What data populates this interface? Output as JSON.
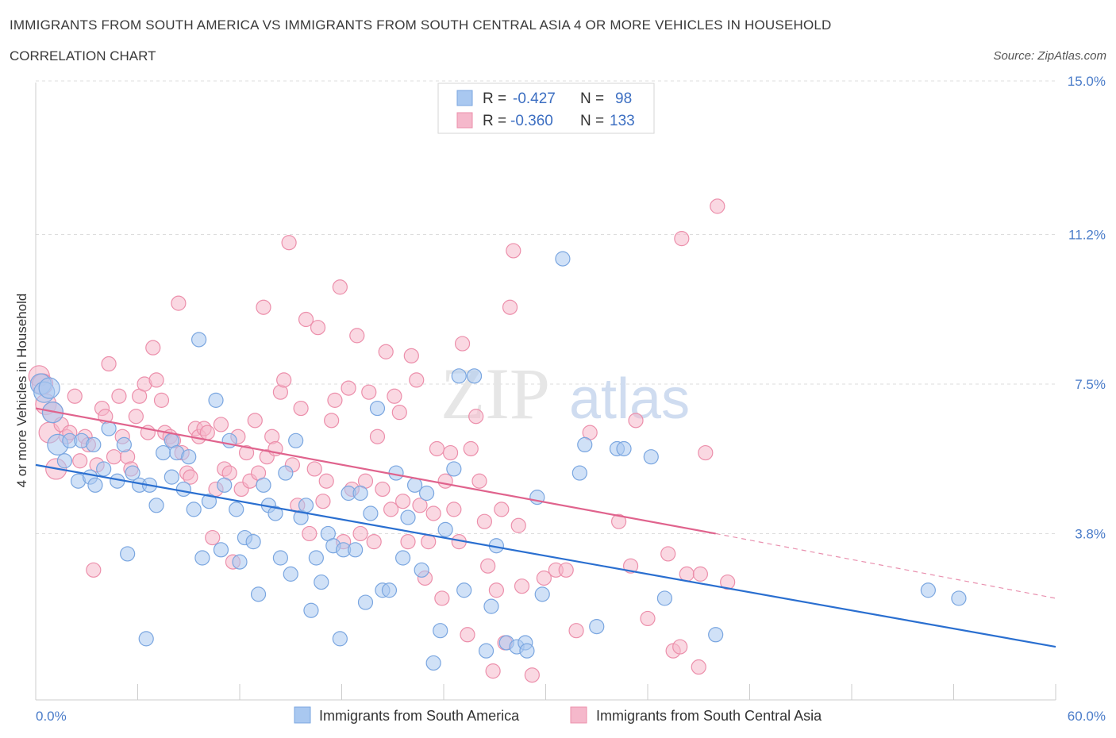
{
  "header": {
    "title": "IMMIGRANTS FROM SOUTH AMERICA VS IMMIGRANTS FROM SOUTH CENTRAL ASIA 4 OR MORE VEHICLES IN HOUSEHOLD",
    "subtitle": "CORRELATION CHART",
    "source": "Source: ZipAtlas.com"
  },
  "watermark": "ZIPatlas",
  "colors": {
    "blue_fill": "#a9c8f0",
    "blue_stroke": "#7aa6e0",
    "blue_line": "#2a6fd0",
    "pink_fill": "#f5b8cb",
    "pink_stroke": "#ec8fab",
    "pink_line": "#e0638d",
    "tick_text": "#4a7cc9",
    "grid": "#dddddd"
  },
  "chart_data": {
    "type": "scatter",
    "title": "IMMIGRANTS FROM SOUTH AMERICA VS IMMIGRANTS FROM SOUTH CENTRAL ASIA 4 OR MORE VEHICLES IN HOUSEHOLD",
    "xlabel": "",
    "ylabel": "4 or more Vehicles in Household",
    "xlim": [
      0,
      60
    ],
    "ylim": [
      0,
      15
    ],
    "x_tick_labels": {
      "min": "0.0%",
      "max": "60.0%"
    },
    "y_ticks": [
      {
        "value": 3.8,
        "label": "3.8%"
      },
      {
        "value": 7.5,
        "label": "7.5%"
      },
      {
        "value": 11.2,
        "label": "11.2%"
      },
      {
        "value": 15.0,
        "label": "15.0%"
      }
    ],
    "grid": true,
    "legend_top": [
      {
        "r_label": "R =",
        "r_value": "-0.427",
        "n_label": "N =",
        "n_value": "98",
        "color": "blue"
      },
      {
        "r_label": "R =",
        "r_value": "-0.360",
        "n_label": "N =",
        "n_value": "133",
        "color": "pink"
      }
    ],
    "series": [
      {
        "name": "Immigrants from South America",
        "color": "blue",
        "r": -0.427,
        "n": 98,
        "trend": {
          "x0": 0,
          "y0": 5.5,
          "x1": 60,
          "y1": 1.0
        },
        "points": [
          [
            0.3,
            7.5
          ],
          [
            0.5,
            7.3
          ],
          [
            1.0,
            6.8
          ],
          [
            1.3,
            6.0
          ],
          [
            1.7,
            5.6
          ],
          [
            2.0,
            6.1
          ],
          [
            2.5,
            5.1
          ],
          [
            2.7,
            6.1
          ],
          [
            3.2,
            5.2
          ],
          [
            3.5,
            5.0
          ],
          [
            3.4,
            6.0
          ],
          [
            4.0,
            5.4
          ],
          [
            4.3,
            6.4
          ],
          [
            4.8,
            5.1
          ],
          [
            5.2,
            6.0
          ],
          [
            5.4,
            3.3
          ],
          [
            5.7,
            5.3
          ],
          [
            6.1,
            5.0
          ],
          [
            6.5,
            1.2
          ],
          [
            6.7,
            5.0
          ],
          [
            7.1,
            4.5
          ],
          [
            7.5,
            5.8
          ],
          [
            8.0,
            6.1
          ],
          [
            8.3,
            5.8
          ],
          [
            8.0,
            5.2
          ],
          [
            8.7,
            4.9
          ],
          [
            9.0,
            5.7
          ],
          [
            9.3,
            4.4
          ],
          [
            9.6,
            8.6
          ],
          [
            9.8,
            3.2
          ],
          [
            10.2,
            4.6
          ],
          [
            10.6,
            7.1
          ],
          [
            10.9,
            3.4
          ],
          [
            11.1,
            5.0
          ],
          [
            11.4,
            6.1
          ],
          [
            11.8,
            4.4
          ],
          [
            12.0,
            3.1
          ],
          [
            12.3,
            3.7
          ],
          [
            12.8,
            3.6
          ],
          [
            13.1,
            2.3
          ],
          [
            13.4,
            5.0
          ],
          [
            13.7,
            4.5
          ],
          [
            14.1,
            4.3
          ],
          [
            14.4,
            3.2
          ],
          [
            14.7,
            5.3
          ],
          [
            15.0,
            2.8
          ],
          [
            15.3,
            6.1
          ],
          [
            15.6,
            4.2
          ],
          [
            15.9,
            4.5
          ],
          [
            16.2,
            1.9
          ],
          [
            16.5,
            3.2
          ],
          [
            16.8,
            2.6
          ],
          [
            17.2,
            3.8
          ],
          [
            17.5,
            3.5
          ],
          [
            17.9,
            1.2
          ],
          [
            18.1,
            3.4
          ],
          [
            18.4,
            4.8
          ],
          [
            18.8,
            3.4
          ],
          [
            19.1,
            4.8
          ],
          [
            19.4,
            2.1
          ],
          [
            19.7,
            4.3
          ],
          [
            20.1,
            6.9
          ],
          [
            20.4,
            2.4
          ],
          [
            20.8,
            2.4
          ],
          [
            21.2,
            5.3
          ],
          [
            21.6,
            3.2
          ],
          [
            21.9,
            4.2
          ],
          [
            22.3,
            5.0
          ],
          [
            22.7,
            2.9
          ],
          [
            23.0,
            4.8
          ],
          [
            23.4,
            0.6
          ],
          [
            23.8,
            1.4
          ],
          [
            24.1,
            3.9
          ],
          [
            24.6,
            5.4
          ],
          [
            24.9,
            7.7
          ],
          [
            25.2,
            2.4
          ],
          [
            25.8,
            7.7
          ],
          [
            26.5,
            0.9
          ],
          [
            26.8,
            2.0
          ],
          [
            27.1,
            3.5
          ],
          [
            27.7,
            1.1
          ],
          [
            28.3,
            1.0
          ],
          [
            28.8,
            1.1
          ],
          [
            28.9,
            0.9
          ],
          [
            29.5,
            4.7
          ],
          [
            29.8,
            2.3
          ],
          [
            31.0,
            10.6
          ],
          [
            32.0,
            5.3
          ],
          [
            32.3,
            6.0
          ],
          [
            33.0,
            1.5
          ],
          [
            34.2,
            5.9
          ],
          [
            34.6,
            5.9
          ],
          [
            36.2,
            5.7
          ],
          [
            37.0,
            2.2
          ],
          [
            40.0,
            1.3
          ],
          [
            52.5,
            2.4
          ],
          [
            54.3,
            2.2
          ],
          [
            0.8,
            7.4
          ]
        ]
      },
      {
        "name": "Immigrants from South Central Asia",
        "color": "pink",
        "r": -0.36,
        "n": 133,
        "trend": {
          "x0": 0,
          "y0": 6.9,
          "x1": 40,
          "y1": 3.8
        },
        "trend_ext": {
          "x0": 40,
          "y0": 3.8,
          "x1": 60,
          "y1": 2.2
        },
        "points": [
          [
            0.2,
            7.7
          ],
          [
            0.4,
            7.5
          ],
          [
            0.6,
            7.0
          ],
          [
            0.8,
            6.3
          ],
          [
            1.0,
            6.8
          ],
          [
            1.2,
            5.4
          ],
          [
            1.5,
            6.5
          ],
          [
            1.8,
            6.2
          ],
          [
            2.0,
            6.3
          ],
          [
            2.3,
            7.2
          ],
          [
            2.6,
            5.6
          ],
          [
            2.9,
            6.2
          ],
          [
            3.1,
            6.0
          ],
          [
            3.4,
            2.9
          ],
          [
            3.6,
            5.5
          ],
          [
            3.9,
            6.9
          ],
          [
            4.1,
            6.7
          ],
          [
            4.3,
            8.0
          ],
          [
            4.6,
            5.7
          ],
          [
            4.9,
            7.2
          ],
          [
            5.1,
            6.2
          ],
          [
            5.4,
            5.7
          ],
          [
            5.6,
            5.4
          ],
          [
            5.9,
            6.7
          ],
          [
            6.1,
            7.2
          ],
          [
            6.4,
            7.5
          ],
          [
            6.6,
            6.3
          ],
          [
            6.9,
            8.4
          ],
          [
            7.1,
            7.6
          ],
          [
            7.4,
            7.1
          ],
          [
            7.6,
            6.3
          ],
          [
            7.9,
            6.2
          ],
          [
            8.1,
            6.1
          ],
          [
            8.4,
            9.5
          ],
          [
            8.6,
            5.8
          ],
          [
            8.9,
            5.3
          ],
          [
            9.1,
            5.2
          ],
          [
            9.4,
            6.4
          ],
          [
            9.6,
            6.2
          ],
          [
            9.9,
            6.4
          ],
          [
            10.1,
            6.3
          ],
          [
            10.4,
            3.7
          ],
          [
            10.6,
            4.9
          ],
          [
            10.9,
            6.5
          ],
          [
            11.1,
            5.4
          ],
          [
            11.4,
            5.3
          ],
          [
            11.6,
            3.1
          ],
          [
            11.9,
            6.2
          ],
          [
            12.1,
            4.9
          ],
          [
            12.4,
            5.8
          ],
          [
            12.6,
            5.1
          ],
          [
            12.9,
            6.6
          ],
          [
            13.1,
            5.3
          ],
          [
            13.4,
            9.4
          ],
          [
            13.6,
            5.7
          ],
          [
            13.9,
            6.2
          ],
          [
            14.1,
            5.9
          ],
          [
            14.4,
            7.3
          ],
          [
            14.6,
            7.6
          ],
          [
            14.9,
            11.0
          ],
          [
            15.1,
            5.5
          ],
          [
            15.4,
            4.5
          ],
          [
            15.6,
            6.9
          ],
          [
            15.9,
            9.1
          ],
          [
            16.1,
            3.8
          ],
          [
            16.4,
            5.4
          ],
          [
            16.6,
            8.9
          ],
          [
            16.9,
            4.6
          ],
          [
            17.1,
            5.1
          ],
          [
            17.4,
            6.6
          ],
          [
            17.6,
            7.1
          ],
          [
            17.9,
            9.9
          ],
          [
            18.1,
            3.6
          ],
          [
            18.4,
            7.4
          ],
          [
            18.6,
            4.9
          ],
          [
            18.9,
            8.7
          ],
          [
            19.1,
            3.8
          ],
          [
            19.4,
            5.1
          ],
          [
            19.6,
            7.3
          ],
          [
            19.9,
            3.6
          ],
          [
            20.1,
            6.2
          ],
          [
            20.4,
            4.9
          ],
          [
            20.6,
            8.3
          ],
          [
            20.9,
            4.4
          ],
          [
            21.1,
            7.2
          ],
          [
            21.4,
            6.8
          ],
          [
            21.6,
            4.6
          ],
          [
            21.9,
            3.6
          ],
          [
            22.1,
            8.2
          ],
          [
            22.4,
            7.6
          ],
          [
            22.6,
            4.5
          ],
          [
            22.9,
            2.7
          ],
          [
            23.1,
            3.6
          ],
          [
            23.4,
            4.3
          ],
          [
            23.6,
            5.9
          ],
          [
            23.9,
            2.2
          ],
          [
            24.1,
            5.1
          ],
          [
            24.4,
            5.8
          ],
          [
            24.6,
            4.4
          ],
          [
            24.9,
            3.6
          ],
          [
            25.1,
            8.5
          ],
          [
            25.4,
            1.3
          ],
          [
            25.6,
            5.9
          ],
          [
            25.9,
            6.7
          ],
          [
            26.1,
            5.1
          ],
          [
            26.4,
            4.1
          ],
          [
            26.6,
            3.0
          ],
          [
            26.9,
            0.4
          ],
          [
            27.1,
            2.4
          ],
          [
            27.4,
            4.4
          ],
          [
            27.6,
            1.1
          ],
          [
            27.9,
            9.4
          ],
          [
            28.1,
            10.8
          ],
          [
            28.4,
            4.0
          ],
          [
            28.6,
            2.5
          ],
          [
            29.2,
            0.3
          ],
          [
            29.9,
            2.7
          ],
          [
            30.6,
            2.9
          ],
          [
            31.2,
            2.9
          ],
          [
            31.8,
            1.4
          ],
          [
            32.6,
            6.3
          ],
          [
            34.3,
            4.1
          ],
          [
            35.0,
            3.0
          ],
          [
            35.3,
            6.6
          ],
          [
            36.0,
            1.7
          ],
          [
            37.2,
            3.3
          ],
          [
            37.5,
            0.9
          ],
          [
            37.9,
            1.0
          ],
          [
            38.3,
            2.8
          ],
          [
            39.0,
            0.5
          ],
          [
            39.1,
            2.8
          ],
          [
            39.4,
            5.8
          ],
          [
            40.7,
            2.6
          ],
          [
            38.0,
            11.1
          ],
          [
            40.1,
            11.9
          ]
        ]
      }
    ]
  }
}
